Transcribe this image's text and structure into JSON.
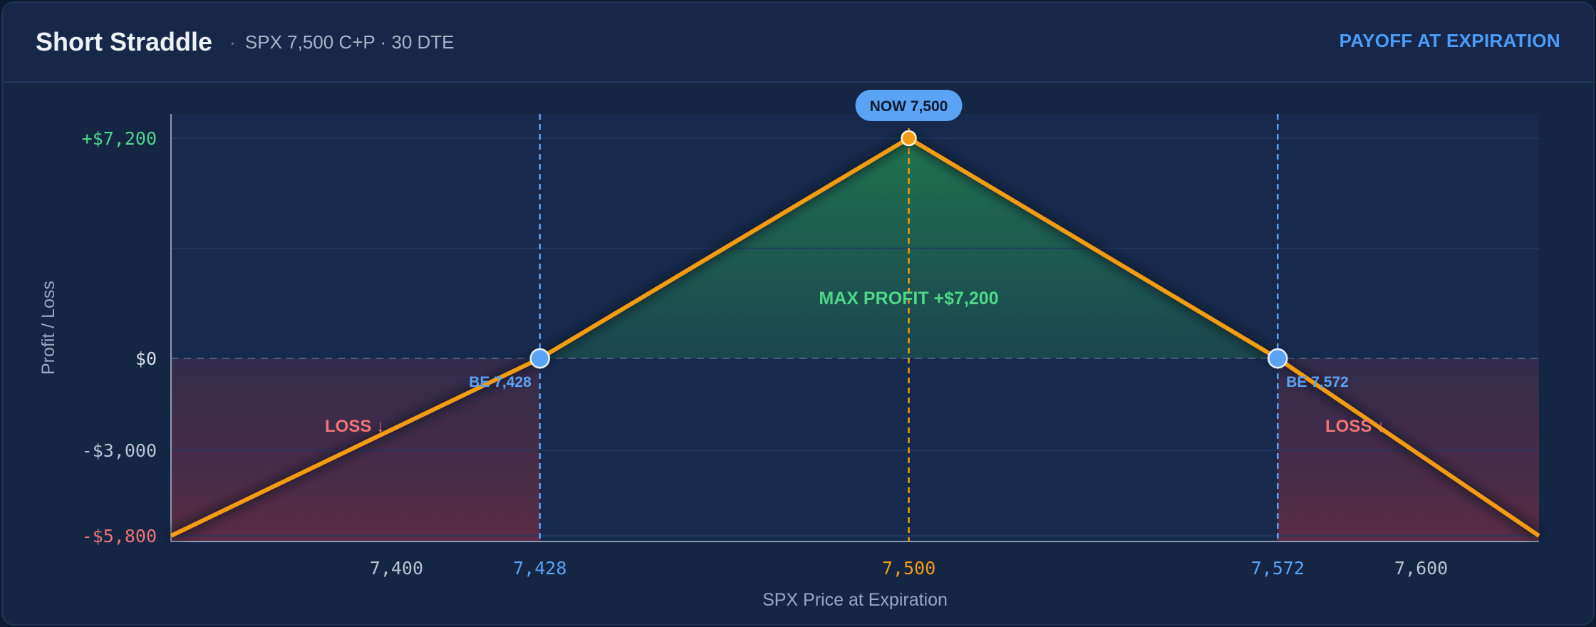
{
  "header": {
    "title": "Short Straddle",
    "separator": "·",
    "subtitle": "SPX 7,500 C+P · 30 DTE",
    "right_label": "PAYOFF AT EXPIRATION"
  },
  "colors": {
    "payoff_line": "#f39c12",
    "breakeven": "#5aa3f5",
    "profit": "#4fd68a",
    "loss": "#f07575",
    "axis_text": "#b9c3d3"
  },
  "chart_data": {
    "type": "line",
    "xlabel": "SPX Price at Expiration",
    "ylabel": "Profit / Loss",
    "xlim": [
      7356,
      7623
    ],
    "ylim": [
      -5800,
      7200
    ],
    "x": [
      7356,
      7428,
      7500,
      7572,
      7623
    ],
    "series": [
      {
        "values": [
          -5800,
          0,
          7200,
          0,
          -5800
        ]
      }
    ],
    "x_ticks": [
      {
        "value": 7400,
        "label": "7,400",
        "kind": "normal"
      },
      {
        "value": 7428,
        "label": "7,428",
        "kind": "breakeven"
      },
      {
        "value": 7500,
        "label": "7,500",
        "kind": "strike"
      },
      {
        "value": 7572,
        "label": "7,572",
        "kind": "breakeven"
      },
      {
        "value": 7600,
        "label": "7,600",
        "kind": "normal"
      }
    ],
    "y_ticks": [
      {
        "value": 7200,
        "label": "+$7,200",
        "kind": "profit"
      },
      {
        "value": 0,
        "label": "$0",
        "kind": "zero"
      },
      {
        "value": -3000,
        "label": "-$3,000",
        "kind": "normal"
      },
      {
        "value": -5800,
        "label": "-$5,800",
        "kind": "loss"
      }
    ],
    "breakevens": [
      {
        "value": 7428,
        "label": "BE 7,428"
      },
      {
        "value": 7572,
        "label": "BE 7,572"
      }
    ],
    "current_price": {
      "value": 7500,
      "label": "NOW 7,500"
    },
    "annotations": {
      "max_profit": "MAX PROFIT  +$7,200",
      "loss_left": "LOSS ↓",
      "loss_right": "LOSS ↓"
    },
    "grid": true
  }
}
